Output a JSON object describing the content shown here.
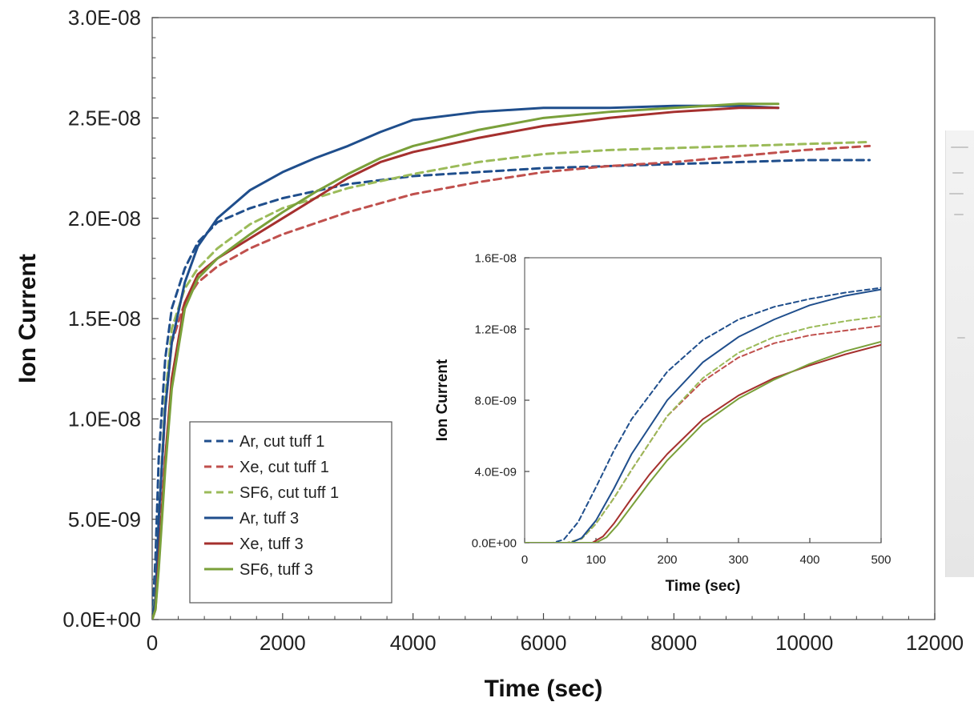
{
  "chart_data": [
    {
      "type": "line",
      "title": "",
      "xlabel": "Time (sec)",
      "ylabel": "Ion Current",
      "xlim": [
        0,
        12000
      ],
      "ylim": [
        0,
        3e-08
      ],
      "x_ticks": [
        "0",
        "2000",
        "4000",
        "6000",
        "8000",
        "10000",
        "12000"
      ],
      "y_ticks": [
        "0.0E+00",
        "5.0E-09",
        "1.0E-08",
        "1.5E-08",
        "2.0E-08",
        "2.5E-08",
        "3.0E-08"
      ],
      "grid": false,
      "legend_position": "bottom-left",
      "series": [
        {
          "name": "Ar, cut tuff 1",
          "color": "#1f4e8c",
          "dash": true,
          "x": [
            0,
            50,
            100,
            200,
            300,
            500,
            700,
            1000,
            1500,
            2000,
            3000,
            4000,
            5000,
            6000,
            7000,
            8000,
            9000,
            10000,
            11000
          ],
          "y": [
            0,
            3e-09,
            8e-09,
            1.3e-08,
            1.55e-08,
            1.75e-08,
            1.88e-08,
            1.98e-08,
            2.05e-08,
            2.1e-08,
            2.17e-08,
            2.21e-08,
            2.23e-08,
            2.25e-08,
            2.26e-08,
            2.27e-08,
            2.28e-08,
            2.29e-08,
            2.29e-08
          ]
        },
        {
          "name": "Xe, cut tuff 1",
          "color": "#c0504d",
          "dash": true,
          "x": [
            0,
            50,
            100,
            200,
            300,
            500,
            700,
            1000,
            1500,
            2000,
            3000,
            4000,
            5000,
            6000,
            7000,
            8000,
            9000,
            10000,
            11000
          ],
          "y": [
            0,
            1e-09,
            4.5e-09,
            1.05e-08,
            1.38e-08,
            1.58e-08,
            1.68e-08,
            1.76e-08,
            1.85e-08,
            1.92e-08,
            2.03e-08,
            2.12e-08,
            2.18e-08,
            2.23e-08,
            2.26e-08,
            2.28e-08,
            2.31e-08,
            2.34e-08,
            2.36e-08
          ]
        },
        {
          "name": "SF6, cut tuff 1",
          "color": "#9bbb59",
          "dash": true,
          "x": [
            0,
            50,
            100,
            200,
            300,
            500,
            700,
            1000,
            1500,
            2000,
            3000,
            4000,
            5000,
            6000,
            7000,
            8000,
            9000,
            10000,
            11000
          ],
          "y": [
            0,
            1.2e-09,
            5e-09,
            1.1e-08,
            1.45e-08,
            1.65e-08,
            1.75e-08,
            1.85e-08,
            1.97e-08,
            2.05e-08,
            2.15e-08,
            2.22e-08,
            2.28e-08,
            2.32e-08,
            2.34e-08,
            2.35e-08,
            2.36e-08,
            2.37e-08,
            2.38e-08
          ]
        },
        {
          "name": "Ar, tuff 3",
          "color": "#1f4e8c",
          "dash": false,
          "x": [
            0,
            50,
            100,
            200,
            300,
            500,
            700,
            1000,
            1500,
            2000,
            2500,
            3000,
            3500,
            4000,
            5000,
            6000,
            7000,
            8000,
            9000,
            9600
          ],
          "y": [
            0,
            1e-09,
            5e-09,
            1.05e-08,
            1.38e-08,
            1.68e-08,
            1.86e-08,
            2e-08,
            2.14e-08,
            2.23e-08,
            2.3e-08,
            2.36e-08,
            2.43e-08,
            2.49e-08,
            2.53e-08,
            2.55e-08,
            2.55e-08,
            2.56e-08,
            2.56e-08,
            2.55e-08
          ]
        },
        {
          "name": "Xe, tuff 3",
          "color": "#a5302e",
          "dash": false,
          "x": [
            0,
            50,
            100,
            200,
            300,
            500,
            700,
            1000,
            1500,
            2000,
            2500,
            3000,
            3500,
            4000,
            5000,
            6000,
            7000,
            8000,
            9000,
            9600
          ],
          "y": [
            0,
            5e-10,
            3e-09,
            8e-09,
            1.2e-08,
            1.58e-08,
            1.72e-08,
            1.8e-08,
            1.9e-08,
            2e-08,
            2.1e-08,
            2.2e-08,
            2.28e-08,
            2.33e-08,
            2.4e-08,
            2.46e-08,
            2.5e-08,
            2.53e-08,
            2.55e-08,
            2.55e-08
          ]
        },
        {
          "name": "SF6, tuff 3",
          "color": "#7aa03a",
          "dash": false,
          "x": [
            0,
            50,
            100,
            200,
            300,
            500,
            700,
            1000,
            1500,
            2000,
            2500,
            3000,
            3500,
            4000,
            5000,
            6000,
            7000,
            8000,
            9000,
            9600
          ],
          "y": [
            0,
            5e-10,
            2.5e-09,
            7.5e-09,
            1.15e-08,
            1.55e-08,
            1.7e-08,
            1.8e-08,
            1.92e-08,
            2.03e-08,
            2.13e-08,
            2.22e-08,
            2.3e-08,
            2.36e-08,
            2.44e-08,
            2.5e-08,
            2.53e-08,
            2.55e-08,
            2.57e-08,
            2.57e-08
          ]
        }
      ]
    },
    {
      "type": "line",
      "title": "",
      "xlabel": "Time (sec)",
      "ylabel": "Ion Current",
      "xlim": [
        0,
        500
      ],
      "ylim": [
        0,
        1.8e-08
      ],
      "x_ticks": [
        "0",
        "100",
        "200",
        "300",
        "400",
        "500"
      ],
      "y_ticks": [
        "0.0E+00",
        "4.0E-09",
        "8.0E-09",
        "1.2E-08",
        "1.6E-08"
      ],
      "grid": false,
      "series": [
        {
          "name": "Ar, cut tuff 1",
          "color": "#1f4e8c",
          "dash": true,
          "x": [
            0,
            40,
            55,
            75,
            100,
            125,
            150,
            200,
            250,
            300,
            350,
            400,
            450,
            500
          ],
          "y": [
            0,
            0,
            2e-10,
            1.3e-09,
            3.5e-09,
            5.8e-09,
            7.8e-09,
            1.08e-08,
            1.28e-08,
            1.41e-08,
            1.49e-08,
            1.54e-08,
            1.58e-08,
            1.61e-08
          ]
        },
        {
          "name": "Xe, cut tuff 1",
          "color": "#c0504d",
          "dash": true,
          "x": [
            0,
            60,
            80,
            100,
            125,
            150,
            200,
            250,
            300,
            350,
            400,
            450,
            500
          ],
          "y": [
            0,
            0,
            2.5e-10,
            1.2e-09,
            2.8e-09,
            4.6e-09,
            8e-09,
            1.02e-08,
            1.17e-08,
            1.26e-08,
            1.31e-08,
            1.34e-08,
            1.37e-08
          ]
        },
        {
          "name": "SF6, cut tuff 1",
          "color": "#9bbb59",
          "dash": true,
          "x": [
            0,
            60,
            80,
            100,
            125,
            150,
            200,
            250,
            300,
            350,
            400,
            450,
            500
          ],
          "y": [
            0,
            0,
            2.5e-10,
            1.2e-09,
            2.8e-09,
            4.6e-09,
            8e-09,
            1.04e-08,
            1.2e-08,
            1.3e-08,
            1.36e-08,
            1.4e-08,
            1.43e-08
          ]
        },
        {
          "name": "Ar, tuff 3",
          "color": "#1f4e8c",
          "dash": false,
          "x": [
            0,
            65,
            80,
            100,
            125,
            150,
            200,
            250,
            300,
            350,
            400,
            450,
            500
          ],
          "y": [
            0,
            0,
            3e-10,
            1.4e-09,
            3.4e-09,
            5.6e-09,
            9e-09,
            1.14e-08,
            1.3e-08,
            1.41e-08,
            1.5e-08,
            1.56e-08,
            1.6e-08
          ]
        },
        {
          "name": "Xe, tuff 3",
          "color": "#a5302e",
          "dash": false,
          "x": [
            0,
            95,
            110,
            125,
            150,
            175,
            200,
            250,
            300,
            350,
            400,
            450,
            500
          ],
          "y": [
            0,
            0,
            4e-10,
            1.2e-09,
            2.8e-09,
            4.3e-09,
            5.6e-09,
            7.8e-09,
            9.3e-09,
            1.04e-08,
            1.12e-08,
            1.19e-08,
            1.25e-08
          ]
        },
        {
          "name": "SF6, tuff 3",
          "color": "#7aa03a",
          "dash": false,
          "x": [
            0,
            100,
            115,
            130,
            150,
            175,
            200,
            250,
            300,
            350,
            400,
            450,
            500
          ],
          "y": [
            0,
            0,
            3.5e-10,
            1.1e-09,
            2.3e-09,
            3.8e-09,
            5.2e-09,
            7.5e-09,
            9.1e-09,
            1.03e-08,
            1.13e-08,
            1.21e-08,
            1.27e-08
          ]
        }
      ]
    }
  ]
}
